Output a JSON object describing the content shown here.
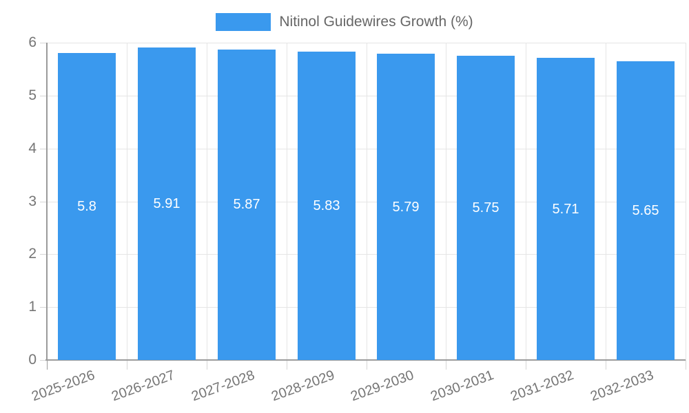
{
  "chart_data": {
    "type": "bar",
    "title": "Nitinol Guidewires Growth (%)",
    "categories": [
      "2025-2026",
      "2026-2027",
      "2027-2028",
      "2028-2029",
      "2029-2030",
      "2030-2031",
      "2031-2032",
      "2032-2033"
    ],
    "values": [
      5.8,
      5.91,
      5.87,
      5.83,
      5.79,
      5.75,
      5.71,
      5.65
    ],
    "value_labels": [
      "5.8",
      "5.91",
      "5.87",
      "5.83",
      "5.79",
      "5.75",
      "5.71",
      "5.65"
    ],
    "series": [
      {
        "name": "Nitinol Guidewires Growth (%)",
        "values": [
          5.8,
          5.91,
          5.87,
          5.83,
          5.79,
          5.75,
          5.71,
          5.65
        ]
      }
    ],
    "xlabel": "",
    "ylabel": "",
    "ylim": [
      0,
      6
    ],
    "yticks": [
      "0",
      "1",
      "2",
      "3",
      "4",
      "5",
      "6"
    ],
    "grid": true,
    "legend_position": "top",
    "colors": {
      "bar": "#3A99EE",
      "axis": "#9B9B9B",
      "grid": "#E5E5E5",
      "tick": "#D6D6D6",
      "axis_label": "#757575",
      "legend_text": "#666666",
      "value_label": "#FFFFFF"
    }
  }
}
